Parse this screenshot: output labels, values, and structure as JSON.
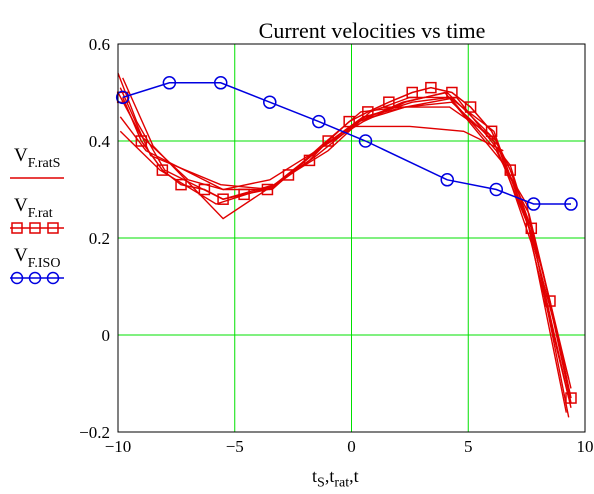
{
  "chart_data": {
    "type": "line",
    "title": "Current velocities vs time",
    "xlabel": "t_S,t_rat,t",
    "xlabel_parts": [
      "t",
      "S",
      ",t",
      "rat",
      ",t"
    ],
    "ylabel": "",
    "xlim": [
      -10,
      10
    ],
    "ylim": [
      -0.2,
      0.6
    ],
    "x_ticks": [
      -10,
      -5,
      0,
      5,
      10
    ],
    "y_ticks": [
      -0.2,
      0,
      0.2,
      0.4,
      0.6
    ],
    "x_tick_labels": [
      "−10",
      "−5",
      "0",
      "5",
      "10"
    ],
    "y_tick_labels": [
      "−0.2",
      "0",
      "0.2",
      "0.4",
      "0.6"
    ],
    "grid": true,
    "grid_color": "#00e000",
    "legend_position": "left",
    "series": [
      {
        "name": "V_F.ratS",
        "label_main": "V",
        "label_sub": "F.ratS",
        "color": "#e00000",
        "marker": "none",
        "segments": [
          {
            "x": [
              -10,
              -9.2,
              -8,
              -5.5,
              -3.3,
              -1.2,
              0.5,
              2.3,
              4.3,
              6.3,
              7.5,
              9.3
            ],
            "y": [
              0.54,
              0.44,
              0.34,
              0.28,
              0.31,
              0.39,
              0.45,
              0.47,
              0.48,
              0.39,
              0.24,
              -0.09
            ]
          },
          {
            "x": [
              -9.8,
              -8.5,
              -5.5,
              -3,
              -1,
              0.8,
              2.5,
              4.2,
              6.2,
              7.6,
              9.4
            ],
            "y": [
              0.53,
              0.39,
              0.24,
              0.32,
              0.38,
              0.46,
              0.49,
              0.49,
              0.38,
              0.25,
              -0.11
            ]
          },
          {
            "x": [
              -9.9,
              -8.8,
              -5.5,
              -3.5,
              -1.5,
              0.3,
              2.2,
              4.1,
              6.2,
              7.7,
              9.3
            ],
            "y": [
              0.45,
              0.38,
              0.3,
              0.3,
              0.37,
              0.44,
              0.48,
              0.5,
              0.4,
              0.19,
              -0.13
            ]
          },
          {
            "x": [
              -9.9,
              -8.2,
              -5.8,
              -3.2,
              -1.2,
              0.6,
              2.6,
              4.2,
              6.1,
              7.6,
              9.2
            ],
            "y": [
              0.42,
              0.34,
              0.27,
              0.31,
              0.39,
              0.45,
              0.48,
              0.49,
              0.42,
              0.22,
              -0.16
            ]
          },
          {
            "x": [
              -10,
              -9,
              -7,
              -5.5,
              -3.5,
              -1.5,
              0.5,
              2.3,
              4,
              6.4,
              7.5,
              9.3
            ],
            "y": [
              0.5,
              0.41,
              0.32,
              0.3,
              0.32,
              0.38,
              0.44,
              0.48,
              0.5,
              0.36,
              0.27,
              -0.17
            ]
          },
          {
            "x": [
              -9.9,
              -8.6,
              -5.6,
              -3.4,
              -1.3,
              0.4,
              2.1,
              4.2,
              6.0,
              7.7,
              9.4
            ],
            "y": [
              0.51,
              0.37,
              0.31,
              0.3,
              0.39,
              0.46,
              0.47,
              0.47,
              0.41,
              0.21,
              -0.15
            ]
          },
          {
            "x": [
              0.3,
              2.3,
              4.5,
              6.8,
              8.2,
              9.4
            ],
            "y": [
              0.44,
              0.47,
              0.49,
              0.35,
              0.13,
              -0.14
            ]
          },
          {
            "x": [
              0,
              2.5,
              4.8,
              6.5
            ],
            "y": [
              0.43,
              0.43,
              0.42,
              0.38
            ]
          }
        ]
      },
      {
        "name": "V_F.rat",
        "label_main": "V",
        "label_sub": "F.rat",
        "color": "#e00000",
        "marker": "square",
        "x": [
          -9.8,
          -9.0,
          -8.1,
          -7.3,
          -6.3,
          -5.5,
          -4.6,
          -3.6,
          -2.7,
          -1.8,
          -1.0,
          -0.1,
          0.7,
          1.6,
          2.6,
          3.4,
          4.3,
          5.1,
          6.0,
          6.8,
          7.7,
          8.5,
          9.4
        ],
        "y": [
          0.49,
          0.4,
          0.34,
          0.31,
          0.3,
          0.28,
          0.29,
          0.3,
          0.33,
          0.36,
          0.4,
          0.44,
          0.46,
          0.48,
          0.5,
          0.51,
          0.5,
          0.47,
          0.42,
          0.34,
          0.22,
          0.07,
          -0.13
        ]
      },
      {
        "name": "V_F.ISO",
        "label_main": "V",
        "label_sub": "F.ISO",
        "color": "#0000e0",
        "marker": "circle",
        "x": [
          -9.8,
          -7.8,
          -5.6,
          -3.5,
          -1.4,
          0.6,
          4.1,
          6.2,
          7.8,
          9.4
        ],
        "y": [
          0.49,
          0.52,
          0.52,
          0.48,
          0.44,
          0.4,
          0.32,
          0.3,
          0.27,
          0.27
        ]
      }
    ]
  }
}
